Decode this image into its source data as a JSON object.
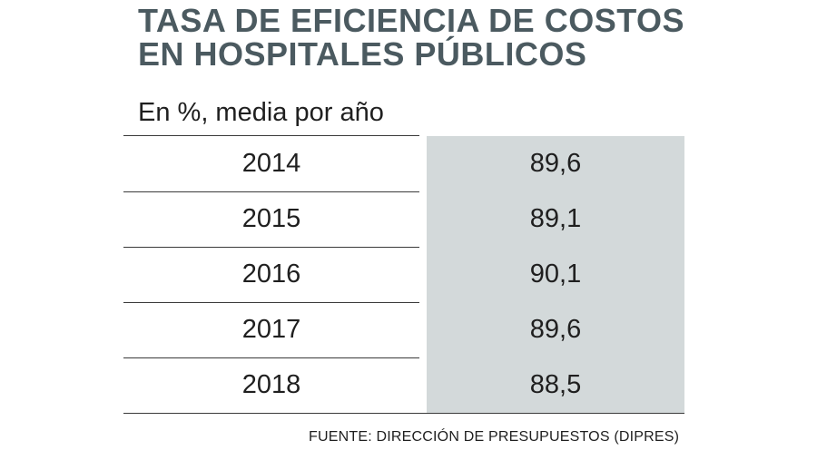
{
  "title_line1": "TASA DE EFICIENCIA DE COSTOS",
  "title_line2": "EN HOSPITALES PÚBLICOS",
  "subtitle": "En %, media por año",
  "source": "FUENTE: DIRECCIÓN DE PRESUPUESTOS (DIPRES)",
  "colors": {
    "title": "#4b5a60",
    "value_column": "#d3d9da",
    "rules": "#3a3a3a"
  },
  "chart_data": {
    "type": "table",
    "title": "TASA DE EFICIENCIA DE COSTOS EN HOSPITALES PÚBLICOS",
    "subtitle": "En %, media por año",
    "categories": [
      "2014",
      "2015",
      "2016",
      "2017",
      "2018"
    ],
    "values": [
      89.6,
      89.1,
      90.1,
      89.6,
      88.5
    ],
    "value_labels": [
      "89,6",
      "89,1",
      "90,1",
      "89,6",
      "88,5"
    ]
  }
}
